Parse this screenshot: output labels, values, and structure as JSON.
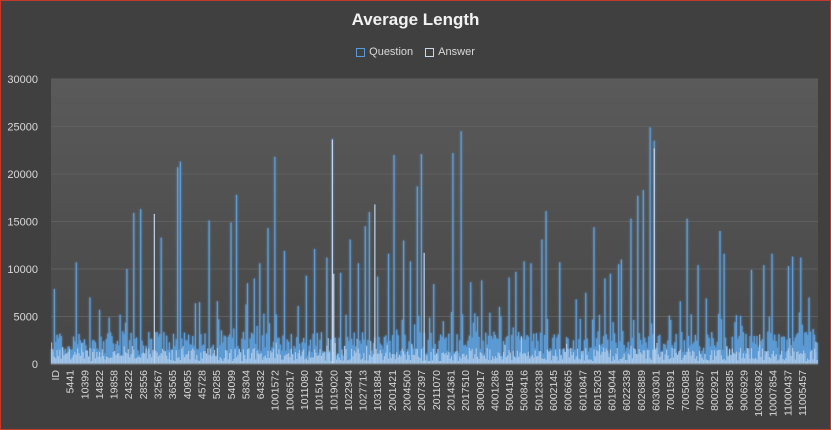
{
  "chart_data": {
    "type": "bar",
    "title": "Average Length",
    "legend": [
      {
        "name": "Question",
        "color": "#5b9bd5"
      },
      {
        "name": "Answer",
        "color": "#c5d9f1"
      }
    ],
    "yticks": [
      0,
      5000,
      10000,
      15000,
      20000,
      25000,
      30000
    ],
    "ylim": [
      0,
      30000
    ],
    "xtick_labels": [
      "ID",
      "5441",
      "10399",
      "14822",
      "19858",
      "24322",
      "28556",
      "32567",
      "36565",
      "40955",
      "45728",
      "50285",
      "54099",
      "58304",
      "64332",
      "1001572",
      "1006517",
      "1011080",
      "1015164",
      "1019020",
      "1022944",
      "1027713",
      "1031884",
      "2001421",
      "2004500",
      "2007397",
      "2011070",
      "2014361",
      "2017510",
      "3000917",
      "4001286",
      "5004168",
      "5008416",
      "5012338",
      "6002145",
      "6006665",
      "6010847",
      "6015203",
      "6019044",
      "6022339",
      "6026889",
      "6030301",
      "7001591",
      "7005088",
      "7008357",
      "8002921",
      "9002385",
      "9006929",
      "10003692",
      "10007854",
      "11000437",
      "11005457"
    ],
    "peaks": {
      "question": [
        {
          "i": 2,
          "v": 7900
        },
        {
          "i": 18,
          "v": 10700
        },
        {
          "i": 28,
          "v": 7000
        },
        {
          "i": 35,
          "v": 5700
        },
        {
          "i": 42,
          "v": 4900
        },
        {
          "i": 55,
          "v": 10000
        },
        {
          "i": 60,
          "v": 15900
        },
        {
          "i": 65,
          "v": 16300
        },
        {
          "i": 80,
          "v": 13300
        },
        {
          "i": 92,
          "v": 20700
        },
        {
          "i": 94,
          "v": 21300
        },
        {
          "i": 108,
          "v": 6500
        },
        {
          "i": 115,
          "v": 15100
        },
        {
          "i": 121,
          "v": 6600
        },
        {
          "i": 131,
          "v": 14900
        },
        {
          "i": 135,
          "v": 17800
        },
        {
          "i": 143,
          "v": 8500
        },
        {
          "i": 148,
          "v": 9000
        },
        {
          "i": 152,
          "v": 10600
        },
        {
          "i": 158,
          "v": 14300
        },
        {
          "i": 163,
          "v": 21800
        },
        {
          "i": 170,
          "v": 11900
        },
        {
          "i": 180,
          "v": 6100
        },
        {
          "i": 186,
          "v": 9300
        },
        {
          "i": 192,
          "v": 12100
        },
        {
          "i": 201,
          "v": 11200
        },
        {
          "i": 205,
          "v": 23700
        },
        {
          "i": 211,
          "v": 9600
        },
        {
          "i": 218,
          "v": 13100
        },
        {
          "i": 224,
          "v": 10600
        },
        {
          "i": 229,
          "v": 14500
        },
        {
          "i": 232,
          "v": 16000
        },
        {
          "i": 238,
          "v": 9200
        },
        {
          "i": 246,
          "v": 11600
        },
        {
          "i": 250,
          "v": 22000
        },
        {
          "i": 257,
          "v": 13000
        },
        {
          "i": 262,
          "v": 10800
        },
        {
          "i": 267,
          "v": 18700
        },
        {
          "i": 270,
          "v": 22100
        },
        {
          "i": 279,
          "v": 8400
        },
        {
          "i": 286,
          "v": 4500
        },
        {
          "i": 293,
          "v": 22200
        },
        {
          "i": 299,
          "v": 24500
        },
        {
          "i": 306,
          "v": 8600
        },
        {
          "i": 314,
          "v": 8800
        },
        {
          "i": 320,
          "v": 5400
        },
        {
          "i": 327,
          "v": 6000
        },
        {
          "i": 334,
          "v": 9100
        },
        {
          "i": 339,
          "v": 9700
        },
        {
          "i": 345,
          "v": 10800
        },
        {
          "i": 350,
          "v": 10600
        },
        {
          "i": 358,
          "v": 13100
        },
        {
          "i": 361,
          "v": 16100
        },
        {
          "i": 371,
          "v": 10700
        },
        {
          "i": 383,
          "v": 6800
        },
        {
          "i": 390,
          "v": 7500
        },
        {
          "i": 396,
          "v": 14400
        },
        {
          "i": 404,
          "v": 9000
        },
        {
          "i": 408,
          "v": 9500
        },
        {
          "i": 414,
          "v": 10500
        },
        {
          "i": 416,
          "v": 11000
        },
        {
          "i": 423,
          "v": 15300
        },
        {
          "i": 428,
          "v": 17700
        },
        {
          "i": 432,
          "v": 18300
        },
        {
          "i": 437,
          "v": 24900
        },
        {
          "i": 440,
          "v": 23500
        },
        {
          "i": 451,
          "v": 5100
        },
        {
          "i": 459,
          "v": 6600
        },
        {
          "i": 464,
          "v": 15300
        },
        {
          "i": 472,
          "v": 10400
        },
        {
          "i": 478,
          "v": 6900
        },
        {
          "i": 488,
          "v": 14000
        },
        {
          "i": 491,
          "v": 11600
        },
        {
          "i": 499,
          "v": 4400
        },
        {
          "i": 504,
          "v": 4000
        },
        {
          "i": 511,
          "v": 9900
        },
        {
          "i": 520,
          "v": 10400
        },
        {
          "i": 526,
          "v": 11600
        },
        {
          "i": 538,
          "v": 10300
        },
        {
          "i": 541,
          "v": 11300
        },
        {
          "i": 547,
          "v": 11200
        },
        {
          "i": 553,
          "v": 7000
        }
      ],
      "answer": [
        {
          "i": 75,
          "v": 15800
        },
        {
          "i": 205,
          "v": 23600
        },
        {
          "i": 236,
          "v": 16800
        },
        {
          "i": 272,
          "v": 11700
        },
        {
          "i": 206,
          "v": 9500
        },
        {
          "i": 440,
          "v": 22700
        }
      ]
    }
  }
}
